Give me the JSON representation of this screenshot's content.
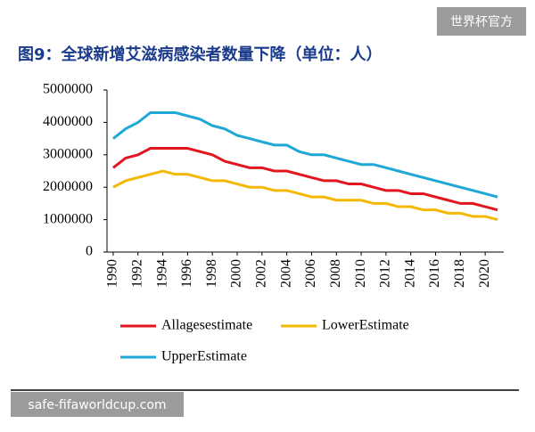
{
  "watermark": "世界杯官方",
  "footer_watermark": "safe-fifaworldcup.com",
  "chart_data": {
    "type": "line",
    "title": "图9：全球新增艾滋病感染者数量下降（单位：人）",
    "x": [
      1990,
      1991,
      1992,
      1993,
      1994,
      1995,
      1996,
      1997,
      1998,
      1999,
      2000,
      2001,
      2002,
      2003,
      2004,
      2005,
      2006,
      2007,
      2008,
      2009,
      2010,
      2011,
      2012,
      2013,
      2014,
      2015,
      2016,
      2017,
      2018,
      2019,
      2020,
      2021
    ],
    "xlim": [
      1989.5,
      2021.5
    ],
    "xticks": [
      1990,
      1992,
      1994,
      1996,
      1998,
      2000,
      2002,
      2004,
      2006,
      2008,
      2010,
      2012,
      2014,
      2016,
      2018,
      2020
    ],
    "ylim": [
      0,
      5000000
    ],
    "yticks": [
      0,
      1000000,
      2000000,
      3000000,
      4000000,
      5000000
    ],
    "series": [
      {
        "name": "Allagesestimate",
        "color": "#e3161f",
        "values": [
          2600000,
          2900000,
          3000000,
          3200000,
          3200000,
          3200000,
          3200000,
          3100000,
          3000000,
          2800000,
          2700000,
          2600000,
          2600000,
          2500000,
          2500000,
          2400000,
          2300000,
          2200000,
          2200000,
          2100000,
          2100000,
          2000000,
          1900000,
          1900000,
          1800000,
          1800000,
          1700000,
          1600000,
          1500000,
          1500000,
          1400000,
          1300000
        ]
      },
      {
        "name": "LowerEstimate",
        "color": "#f5b800",
        "values": [
          2000000,
          2200000,
          2300000,
          2400000,
          2500000,
          2400000,
          2400000,
          2300000,
          2200000,
          2200000,
          2100000,
          2000000,
          2000000,
          1900000,
          1900000,
          1800000,
          1700000,
          1700000,
          1600000,
          1600000,
          1600000,
          1500000,
          1500000,
          1400000,
          1400000,
          1300000,
          1300000,
          1200000,
          1200000,
          1100000,
          1100000,
          1000000
        ]
      },
      {
        "name": "UpperEstimate",
        "color": "#1fa8d6",
        "values": [
          3500000,
          3800000,
          4000000,
          4300000,
          4300000,
          4300000,
          4200000,
          4100000,
          3900000,
          3800000,
          3600000,
          3500000,
          3400000,
          3300000,
          3300000,
          3100000,
          3000000,
          3000000,
          2900000,
          2800000,
          2700000,
          2700000,
          2600000,
          2500000,
          2400000,
          2300000,
          2200000,
          2100000,
          2000000,
          1900000,
          1800000,
          1700000
        ]
      }
    ]
  }
}
